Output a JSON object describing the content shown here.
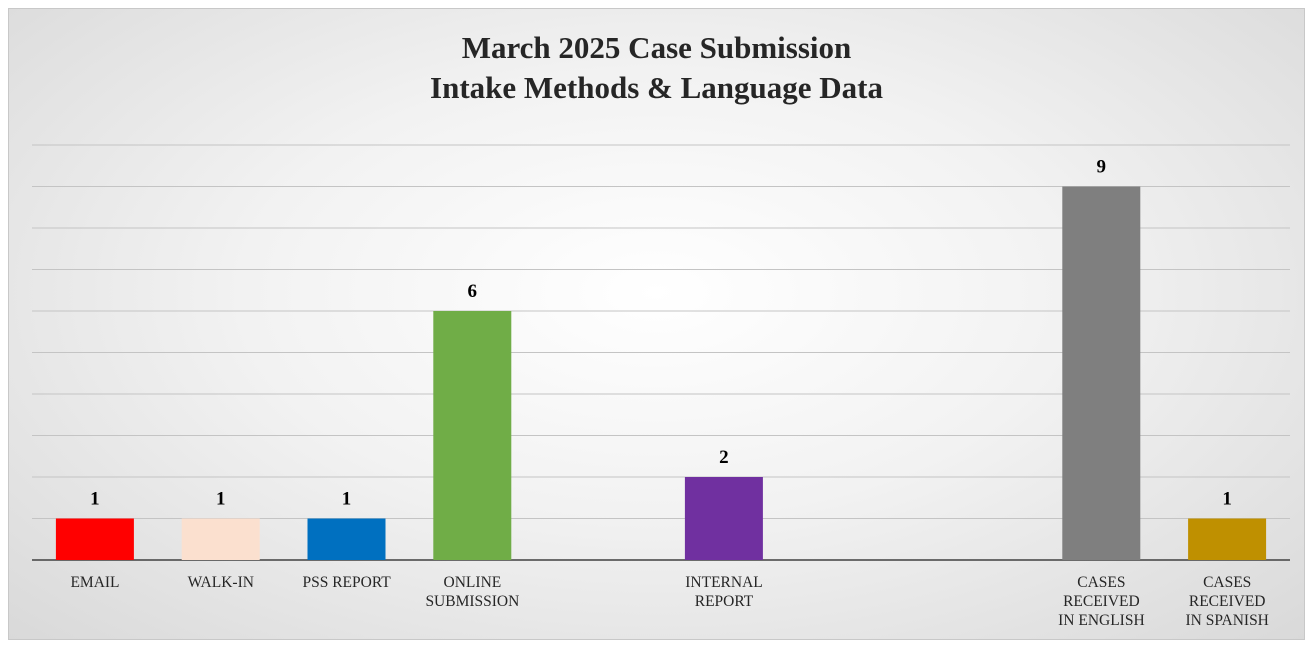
{
  "chart_data": {
    "type": "bar",
    "title": "March 2025 Case Submission\nIntake Methods & Language Data",
    "categories": [
      "EMAIL",
      "WALK-IN",
      "PSS REPORT",
      "ONLINE\nSUBMISSION",
      null,
      "INTERNAL\nREPORT",
      null,
      null,
      "CASES\nRECEIVED\nIN ENGLISH",
      "CASES\nRECEIVED\nIN SPANISH"
    ],
    "values": [
      1,
      1,
      1,
      6,
      null,
      2,
      null,
      null,
      9,
      1
    ],
    "colors": [
      "#ff0000",
      "#fbe0cf",
      "#0070c0",
      "#70ad47",
      null,
      "#7030a0",
      null,
      null,
      "#7f7f7f",
      "#bf9000"
    ],
    "ylim": [
      0,
      10
    ],
    "yticks": [
      0,
      1,
      2,
      3,
      4,
      5,
      6,
      7,
      8,
      9,
      10
    ],
    "grid": true
  }
}
